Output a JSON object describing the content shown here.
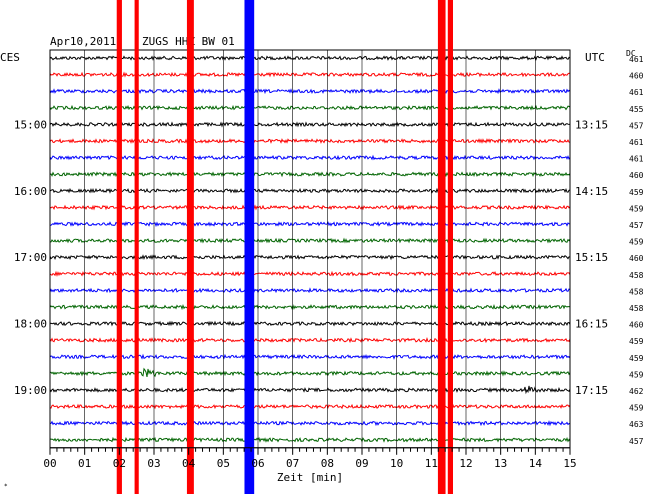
{
  "header": {
    "date": "Apr10,2011",
    "station": "ZUGS HHZ BW 01",
    "left_tz": "CES",
    "right_tz": "UTC",
    "dc_label": "DC"
  },
  "colors": {
    "trace_cycle": [
      "#000000",
      "#ff0000",
      "#0000ff",
      "#006400"
    ],
    "event_red": "#ff0000",
    "event_blue": "#0000ff",
    "grid": "#000000"
  },
  "chart_data": {
    "type": "line",
    "xlabel": "Zeit [min]",
    "xlim": [
      0,
      15
    ],
    "x_ticks": [
      "00",
      "01",
      "02",
      "03",
      "04",
      "05",
      "06",
      "07",
      "08",
      "09",
      "10",
      "11",
      "12",
      "13",
      "14",
      "15"
    ],
    "left_time_labels": [
      {
        "row": 4,
        "label": "15:00"
      },
      {
        "row": 8,
        "label": "16:00"
      },
      {
        "row": 12,
        "label": "17:00"
      },
      {
        "row": 16,
        "label": "18:00"
      },
      {
        "row": 20,
        "label": "19:00"
      }
    ],
    "right_time_labels": [
      {
        "row": 4,
        "label": "13:15"
      },
      {
        "row": 8,
        "label": "14:15"
      },
      {
        "row": 12,
        "label": "15:15"
      },
      {
        "row": 16,
        "label": "16:15"
      },
      {
        "row": 20,
        "label": "17:15"
      }
    ],
    "dc_offsets": [
      "461",
      "460",
      "461",
      "455",
      "457",
      "461",
      "461",
      "460",
      "459",
      "459",
      "457",
      "459",
      "460",
      "458",
      "458",
      "458",
      "460",
      "459",
      "459",
      "459",
      "462",
      "459",
      "463",
      "457"
    ],
    "events": [
      {
        "minute": 2.0,
        "width_min": 0.15,
        "color": "red",
        "rows": [
          0,
          23
        ]
      },
      {
        "minute": 2.5,
        "width_min": 0.12,
        "color": "red",
        "rows": [
          0,
          23
        ]
      },
      {
        "minute": 4.05,
        "width_min": 0.2,
        "color": "red",
        "rows": [
          0,
          23
        ]
      },
      {
        "minute": 5.75,
        "width_min": 0.28,
        "color": "blue",
        "rows": [
          0,
          23
        ]
      },
      {
        "minute": 11.3,
        "width_min": 0.22,
        "color": "red",
        "rows": [
          0,
          23
        ]
      },
      {
        "minute": 11.55,
        "width_min": 0.15,
        "color": "red",
        "rows": [
          0,
          23
        ]
      }
    ],
    "minor_events": [
      {
        "minute": 2.85,
        "row": 19
      },
      {
        "minute": 13.9,
        "row": 20
      }
    ]
  }
}
